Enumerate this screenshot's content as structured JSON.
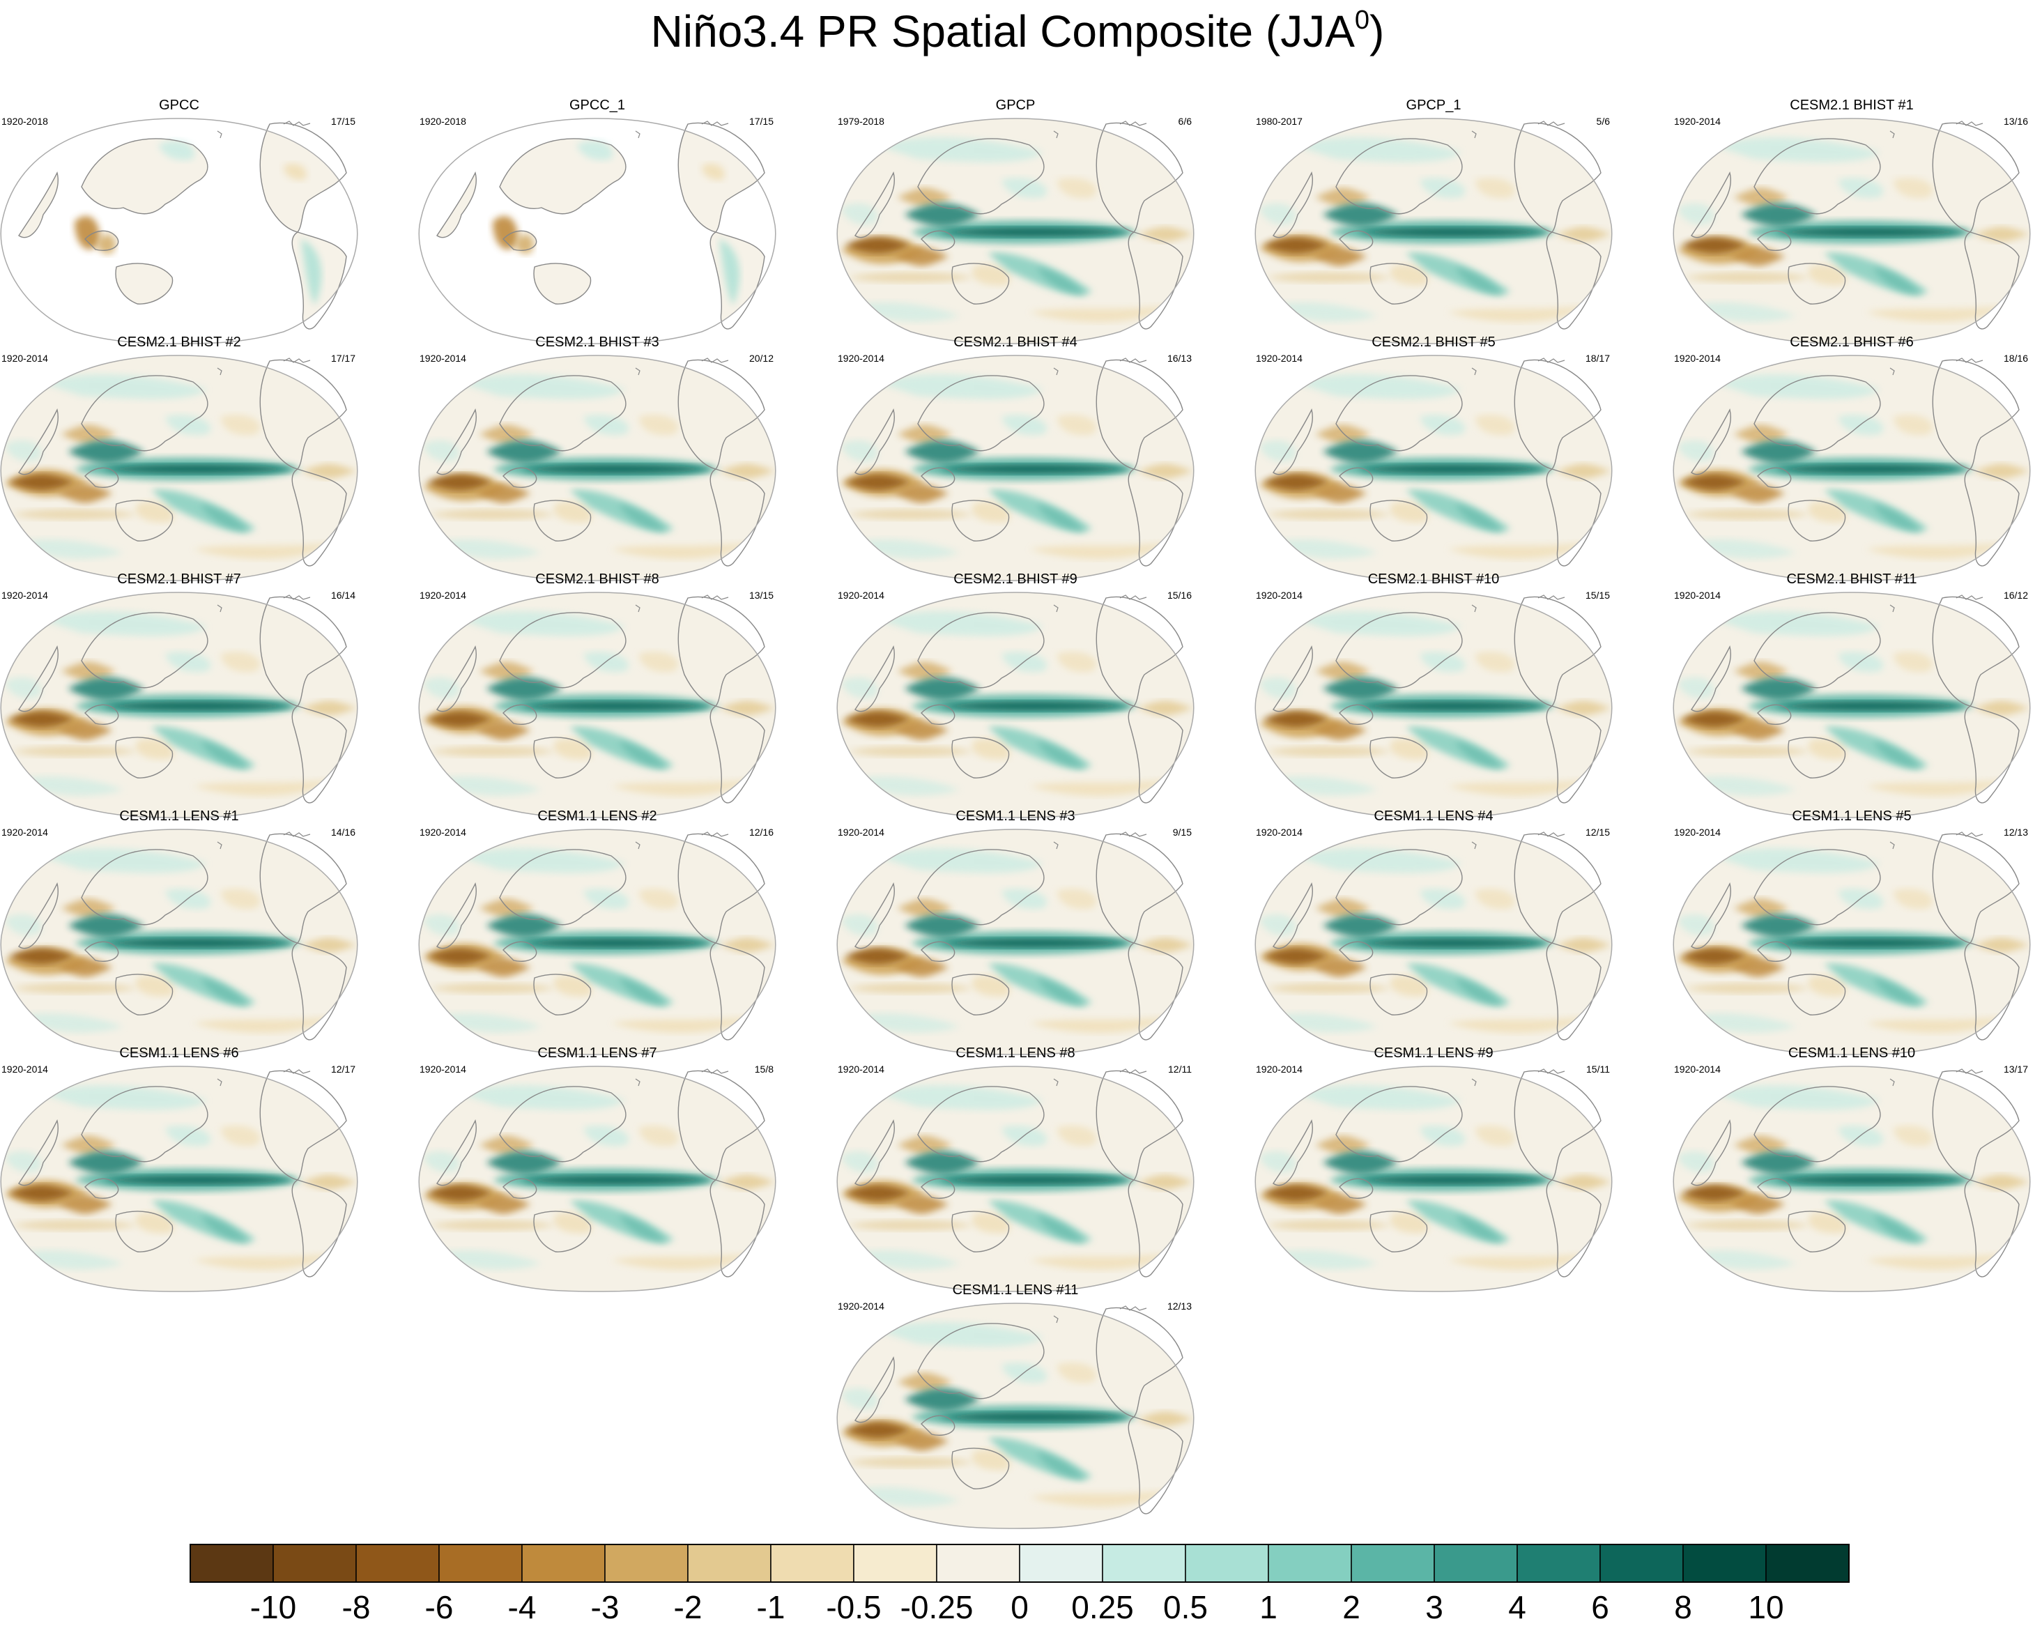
{
  "chart_data": {
    "type": "heatmap",
    "title": "Niño3.4 PR Spatial Composite (JJA",
    "title_superscript": "0",
    "title_close": ")",
    "panels": [
      {
        "title": "GPCC",
        "period": "1920-2018",
        "count": "17/15",
        "coverage": "land"
      },
      {
        "title": "GPCC_1",
        "period": "1920-2018",
        "count": "17/15",
        "coverage": "land"
      },
      {
        "title": "GPCP",
        "period": "1979-2018",
        "count": "6/6",
        "coverage": "global"
      },
      {
        "title": "GPCP_1",
        "period": "1980-2017",
        "count": "5/6",
        "coverage": "global"
      },
      {
        "title": "CESM2.1 BHIST #1",
        "period": "1920-2014",
        "count": "13/16",
        "coverage": "global"
      },
      {
        "title": "CESM2.1 BHIST #2",
        "period": "1920-2014",
        "count": "17/17",
        "coverage": "global"
      },
      {
        "title": "CESM2.1 BHIST #3",
        "period": "1920-2014",
        "count": "20/12",
        "coverage": "global"
      },
      {
        "title": "CESM2.1 BHIST #4",
        "period": "1920-2014",
        "count": "16/13",
        "coverage": "global"
      },
      {
        "title": "CESM2.1 BHIST #5",
        "period": "1920-2014",
        "count": "18/17",
        "coverage": "global"
      },
      {
        "title": "CESM2.1 BHIST #6",
        "period": "1920-2014",
        "count": "18/16",
        "coverage": "global"
      },
      {
        "title": "CESM2.1 BHIST #7",
        "period": "1920-2014",
        "count": "16/14",
        "coverage": "global"
      },
      {
        "title": "CESM2.1 BHIST #8",
        "period": "1920-2014",
        "count": "13/15",
        "coverage": "global"
      },
      {
        "title": "CESM2.1 BHIST #9",
        "period": "1920-2014",
        "count": "15/16",
        "coverage": "global"
      },
      {
        "title": "CESM2.1 BHIST #10",
        "period": "1920-2014",
        "count": "15/15",
        "coverage": "global"
      },
      {
        "title": "CESM2.1 BHIST #11",
        "period": "1920-2014",
        "count": "16/12",
        "coverage": "global"
      },
      {
        "title": "CESM1.1 LENS #1",
        "period": "1920-2014",
        "count": "14/16",
        "coverage": "global"
      },
      {
        "title": "CESM1.1 LENS #2",
        "period": "1920-2014",
        "count": "12/16",
        "coverage": "global"
      },
      {
        "title": "CESM1.1 LENS #3",
        "period": "1920-2014",
        "count": "9/15",
        "coverage": "global"
      },
      {
        "title": "CESM1.1 LENS #4",
        "period": "1920-2014",
        "count": "12/15",
        "coverage": "global"
      },
      {
        "title": "CESM1.1 LENS #5",
        "period": "1920-2014",
        "count": "12/13",
        "coverage": "global"
      },
      {
        "title": "CESM1.1 LENS #6",
        "period": "1920-2014",
        "count": "12/17",
        "coverage": "global"
      },
      {
        "title": "CESM1.1 LENS #7",
        "period": "1920-2014",
        "count": "15/8",
        "coverage": "global"
      },
      {
        "title": "CESM1.1 LENS #8",
        "period": "1920-2014",
        "count": "12/11",
        "coverage": "global"
      },
      {
        "title": "CESM1.1 LENS #9",
        "period": "1920-2014",
        "count": "15/11",
        "coverage": "global"
      },
      {
        "title": "CESM1.1 LENS #10",
        "period": "1920-2014",
        "count": "13/17",
        "coverage": "global"
      },
      {
        "title": "CESM1.1 LENS #11",
        "period": "1920-2014",
        "count": "12/13",
        "coverage": "global"
      }
    ],
    "colorbar": {
      "labels": [
        "-10",
        "-8",
        "-6",
        "-4",
        "-3",
        "-2",
        "-1",
        "-0.5",
        "-0.25",
        "0",
        "0.25",
        "0.5",
        "1",
        "2",
        "3",
        "4",
        "6",
        "8",
        "10"
      ],
      "colors": [
        "#5c3813",
        "#7a4a15",
        "#8f5719",
        "#a86d25",
        "#bf8a3c",
        "#d1a860",
        "#e3c990",
        "#efdcb0",
        "#f6ebcf",
        "#f5f1e6",
        "#e4f2ee",
        "#c6ebe3",
        "#a8e0d4",
        "#84cfc0",
        "#5bb5a6",
        "#3a9a8c",
        "#1f7f72",
        "#0d665a",
        "#024c40",
        "#013b30"
      ]
    }
  }
}
